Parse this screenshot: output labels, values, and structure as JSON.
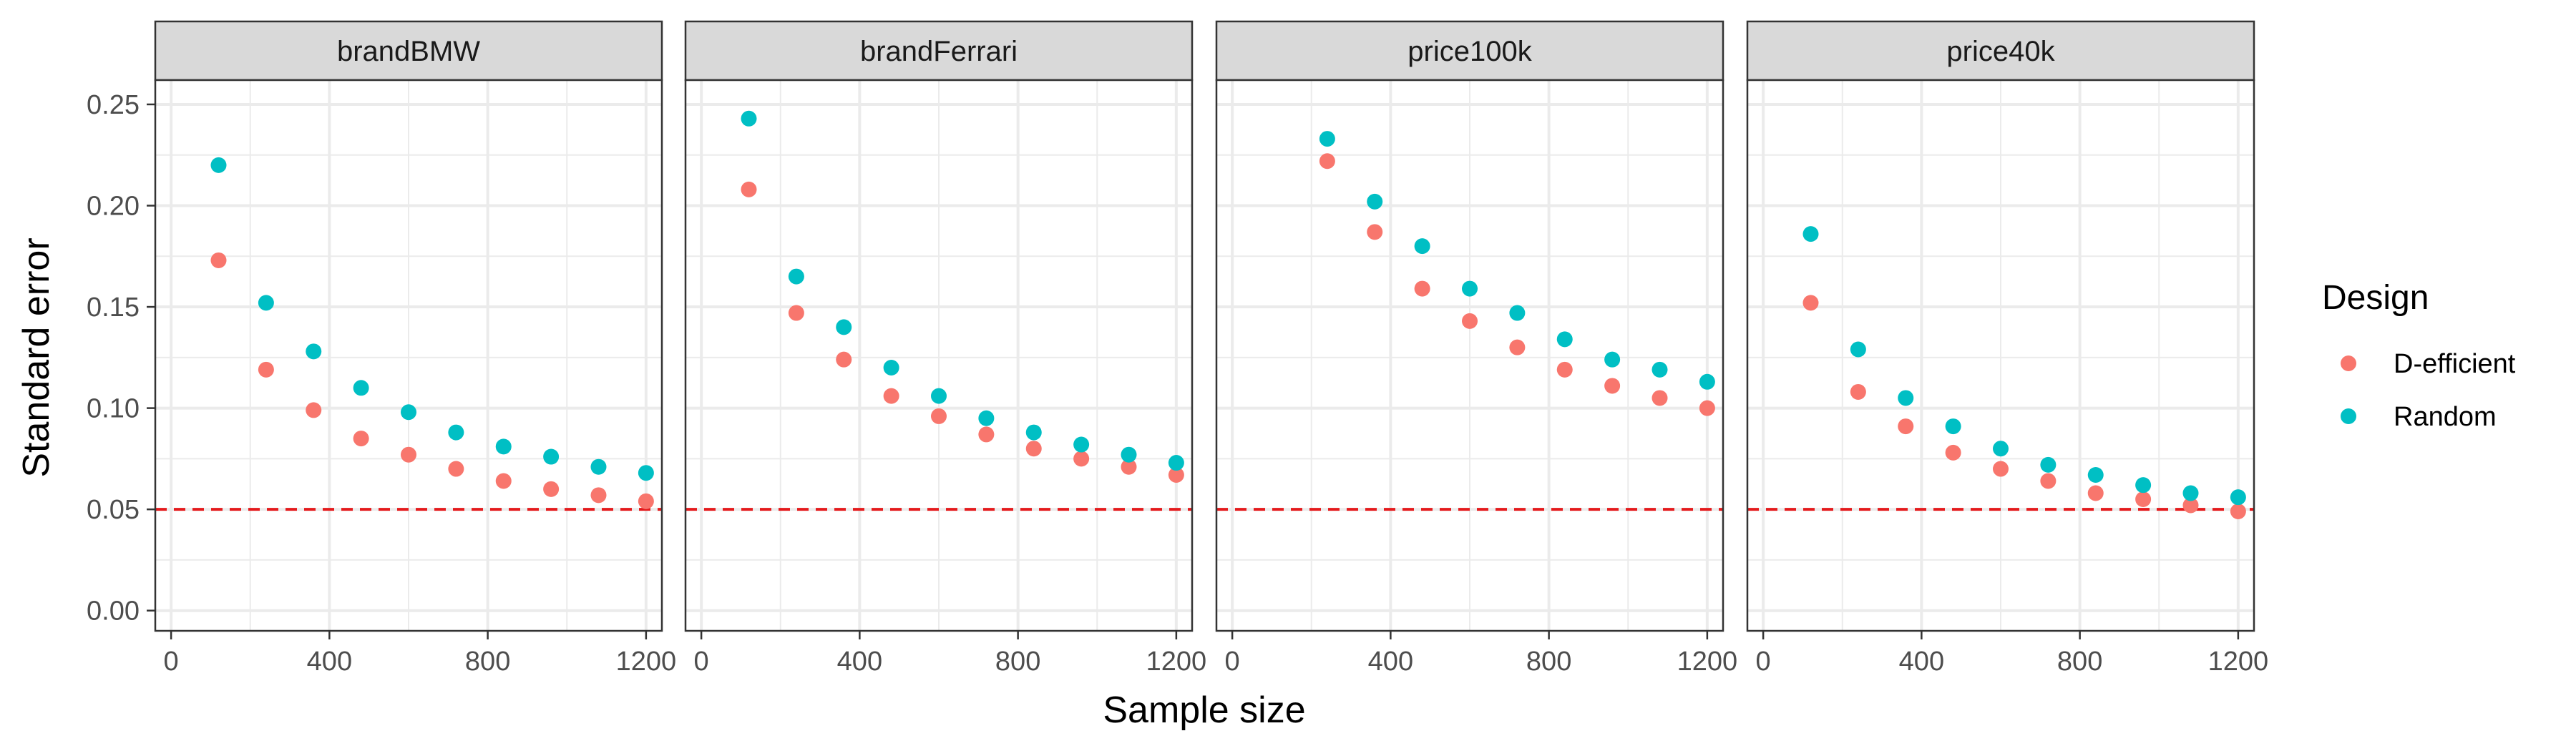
{
  "chart_data": {
    "type": "scatter",
    "facet_layout": "1 row of 4 panels",
    "xlabel": "Sample size",
    "ylabel": "Standard error",
    "xlim": [
      -40,
      1240
    ],
    "ylim": [
      -0.01,
      0.262
    ],
    "x_ticks": [
      0,
      400,
      800,
      1200
    ],
    "y_ticks": [
      0.0,
      0.05,
      0.1,
      0.15,
      0.2,
      0.25
    ],
    "y_tick_labels": [
      "0.00",
      "0.05",
      "0.10",
      "0.15",
      "0.20",
      "0.25"
    ],
    "grid": true,
    "reference_line": {
      "y": 0.05,
      "style": "dashed",
      "color": "#E41A1C"
    },
    "legend": {
      "title": "Design",
      "position": "right",
      "entries": [
        {
          "name": "D-efficient",
          "color": "#F8766D"
        },
        {
          "name": "Random",
          "color": "#00BFC4"
        }
      ]
    },
    "colors": {
      "D-efficient": "#F8766D",
      "Random": "#00BFC4",
      "strip_bg": "#D9D9D9",
      "grid": "#EBEBEB",
      "panel_border": "#333333"
    },
    "panels": [
      {
        "label": "brandBMW",
        "series": [
          {
            "name": "D-efficient",
            "x": [
              120,
              240,
              360,
              480,
              600,
              720,
              840,
              960,
              1080,
              1200
            ],
            "y": [
              0.173,
              0.119,
              0.099,
              0.085,
              0.077,
              0.07,
              0.064,
              0.06,
              0.057,
              0.054
            ]
          },
          {
            "name": "Random",
            "x": [
              120,
              240,
              360,
              480,
              600,
              720,
              840,
              960,
              1080,
              1200
            ],
            "y": [
              0.22,
              0.152,
              0.128,
              0.11,
              0.098,
              0.088,
              0.081,
              0.076,
              0.071,
              0.068
            ]
          }
        ]
      },
      {
        "label": "brandFerrari",
        "series": [
          {
            "name": "D-efficient",
            "x": [
              120,
              240,
              360,
              480,
              600,
              720,
              840,
              960,
              1080,
              1200
            ],
            "y": [
              0.208,
              0.147,
              0.124,
              0.106,
              0.096,
              0.087,
              0.08,
              0.075,
              0.071,
              0.067
            ]
          },
          {
            "name": "Random",
            "x": [
              120,
              240,
              360,
              480,
              600,
              720,
              840,
              960,
              1080,
              1200
            ],
            "y": [
              0.243,
              0.165,
              0.14,
              0.12,
              0.106,
              0.095,
              0.088,
              0.082,
              0.077,
              0.073
            ]
          }
        ]
      },
      {
        "label": "price100k",
        "series": [
          {
            "name": "D-efficient",
            "x": [
              240,
              360,
              480,
              600,
              720,
              840,
              960,
              1080,
              1200
            ],
            "y": [
              0.222,
              0.187,
              0.159,
              0.143,
              0.13,
              0.119,
              0.111,
              0.105,
              0.1
            ]
          },
          {
            "name": "Random",
            "x": [
              240,
              360,
              480,
              600,
              720,
              840,
              960,
              1080,
              1200
            ],
            "y": [
              0.233,
              0.202,
              0.18,
              0.159,
              0.147,
              0.134,
              0.124,
              0.119,
              0.113
            ]
          }
        ]
      },
      {
        "label": "price40k",
        "series": [
          {
            "name": "D-efficient",
            "x": [
              120,
              240,
              360,
              480,
              600,
              720,
              840,
              960,
              1080,
              1200
            ],
            "y": [
              0.152,
              0.108,
              0.091,
              0.078,
              0.07,
              0.064,
              0.058,
              0.055,
              0.052,
              0.049
            ]
          },
          {
            "name": "Random",
            "x": [
              120,
              240,
              360,
              480,
              600,
              720,
              840,
              960,
              1080,
              1200
            ],
            "y": [
              0.186,
              0.129,
              0.105,
              0.091,
              0.08,
              0.072,
              0.067,
              0.062,
              0.058,
              0.056
            ]
          }
        ]
      }
    ]
  }
}
